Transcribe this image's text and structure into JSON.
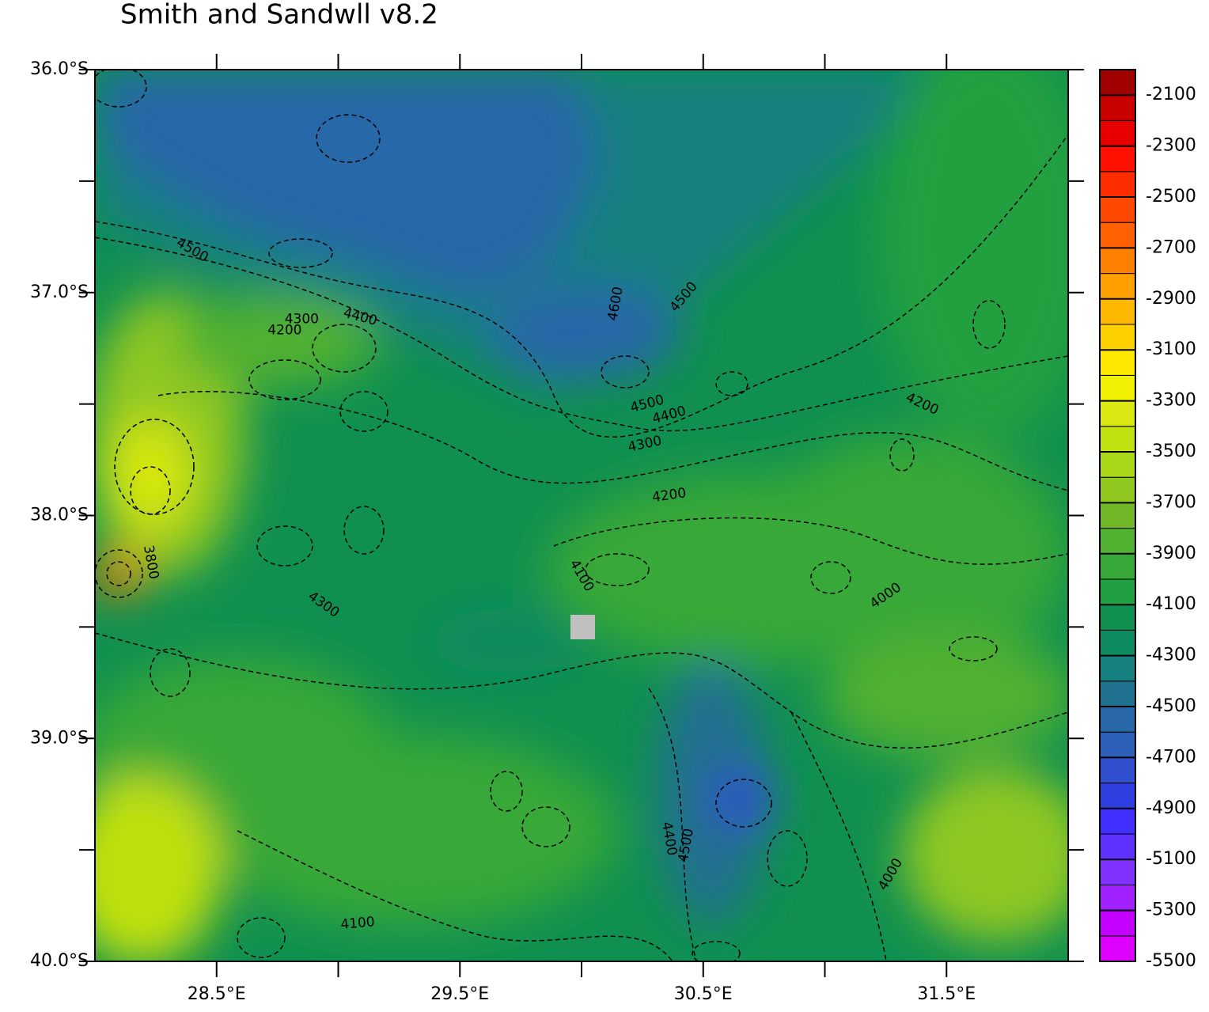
{
  "chart_data": {
    "type": "contour-map",
    "title": "Smith and Sandwll v8.2",
    "xlim": [
      28.0,
      32.0
    ],
    "ylim": [
      -40.0,
      -36.0
    ],
    "xticks": [
      {
        "value": 28.5,
        "label": "28.5°E"
      },
      {
        "value": 29.5,
        "label": "29.5°E"
      },
      {
        "value": 30.5,
        "label": "30.5°E"
      },
      {
        "value": 31.5,
        "label": "31.5°E"
      }
    ],
    "xminor_ticks": [
      29.0,
      30.0,
      31.0
    ],
    "yticks": [
      {
        "value": -36.0,
        "label": "36.0°S"
      },
      {
        "value": -37.0,
        "label": "37.0°S"
      },
      {
        "value": -38.0,
        "label": "38.0°S"
      },
      {
        "value": -39.0,
        "label": "39.0°S"
      },
      {
        "value": -40.0,
        "label": "40.0°S"
      }
    ],
    "yminor_ticks": [
      -36.5,
      -37.5,
      -38.5,
      -39.5
    ],
    "contour_labels": [
      {
        "text": "4500",
        "lon": 28.4,
        "lat": -36.81
      },
      {
        "text": "4300",
        "lon": 28.85,
        "lat": -37.12
      },
      {
        "text": "4200",
        "lon": 28.78,
        "lat": -37.17
      },
      {
        "text": "4400",
        "lon": 29.09,
        "lat": -37.11
      },
      {
        "text": "4600",
        "lon": 30.14,
        "lat": -37.05
      },
      {
        "text": "4500",
        "lon": 30.42,
        "lat": -37.02
      },
      {
        "text": "4500",
        "lon": 30.27,
        "lat": -37.5
      },
      {
        "text": "4400",
        "lon": 30.36,
        "lat": -37.55
      },
      {
        "text": "4300",
        "lon": 30.26,
        "lat": -37.68
      },
      {
        "text": "4200",
        "lon": 30.36,
        "lat": -37.91
      },
      {
        "text": "4200",
        "lon": 31.4,
        "lat": -37.5
      },
      {
        "text": "4100",
        "lon": 30.0,
        "lat": -38.27
      },
      {
        "text": "3800",
        "lon": 28.23,
        "lat": -38.21
      },
      {
        "text": "4300",
        "lon": 28.94,
        "lat": -38.4
      },
      {
        "text": "4000",
        "lon": 31.25,
        "lat": -38.36
      },
      {
        "text": "4400",
        "lon": 30.36,
        "lat": -39.45
      },
      {
        "text": "4500",
        "lon": 30.43,
        "lat": -39.48
      },
      {
        "text": "4000",
        "lon": 31.27,
        "lat": -39.61
      },
      {
        "text": "4100",
        "lon": 29.08,
        "lat": -39.83
      }
    ],
    "colorbar": {
      "lim": [
        -5500,
        -2000
      ],
      "ticks": [
        -5500,
        -5300,
        -5100,
        -4900,
        -4700,
        -4500,
        -4300,
        -4100,
        -3900,
        -3700,
        -3500,
        -3300,
        -3100,
        -2900,
        -2700,
        -2500,
        -2300,
        -2100
      ],
      "colors": [
        "#dd00ff",
        "#c400ff",
        "#a020ff",
        "#8030ff",
        "#6030ff",
        "#4030ff",
        "#3040e0",
        "#3050d0",
        "#2d60b8",
        "#2868a8",
        "#207090",
        "#178080",
        "#0e8a60",
        "#109050",
        "#20a040",
        "#38a838",
        "#50b030",
        "#70b828",
        "#90c820",
        "#a8d818",
        "#c0e010",
        "#d8e810",
        "#f0f000",
        "#ffe800",
        "#ffd000",
        "#ffb800",
        "#ffa000",
        "#ff8000",
        "#ff6000",
        "#ff4800",
        "#ff2c00",
        "#ff1000",
        "#e80000",
        "#c80000",
        "#a00000"
      ]
    }
  }
}
